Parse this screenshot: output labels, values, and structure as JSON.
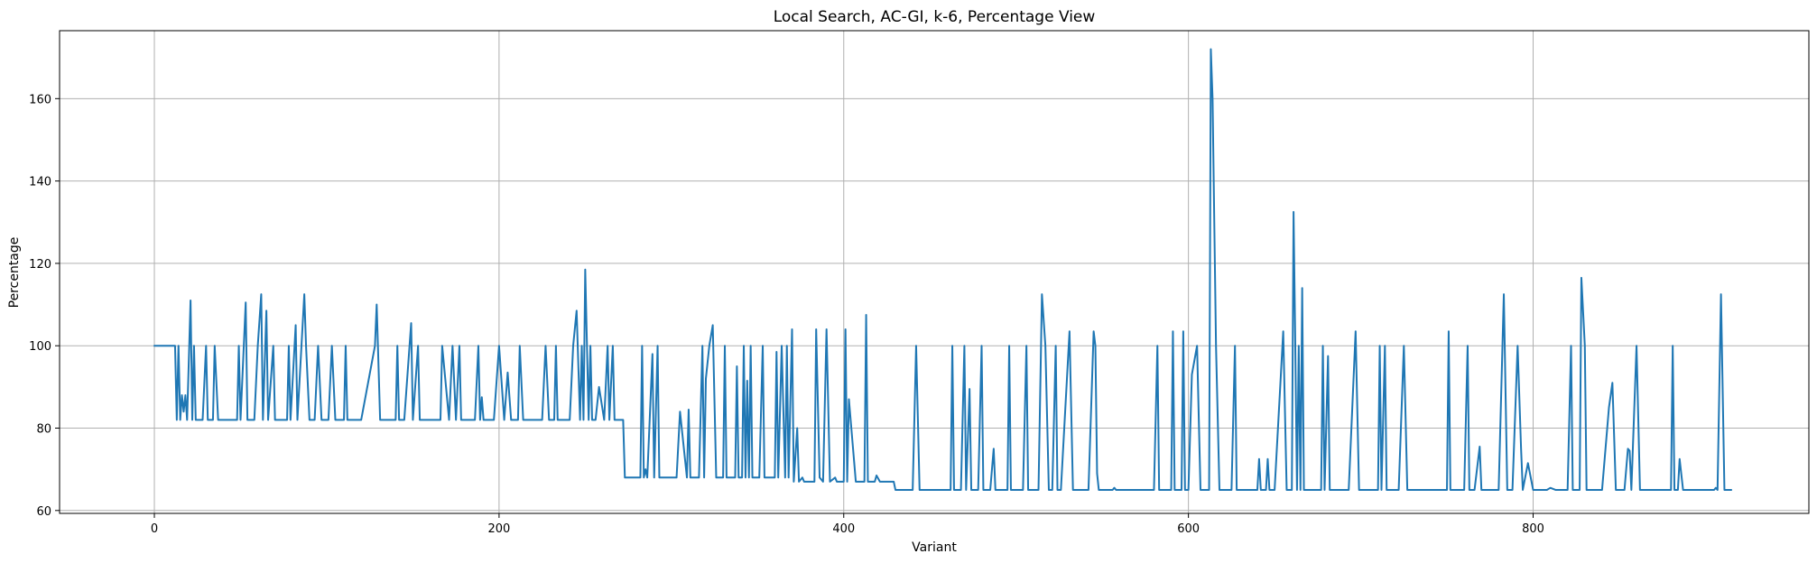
{
  "chart_data": {
    "type": "line",
    "title": "Local Search, AC-GI, k-6, Percentage View",
    "xlabel": "Variant",
    "ylabel": "Percentage",
    "xlim": [
      -55,
      960
    ],
    "ylim": [
      59.3,
      176.5
    ],
    "xticks": [
      0,
      200,
      400,
      600,
      800
    ],
    "yticks": [
      60,
      80,
      100,
      120,
      140,
      160
    ],
    "grid": true,
    "series_color": "#1f77b4",
    "series": [
      {
        "points": [
          [
            0,
            100
          ],
          [
            5,
            100
          ],
          [
            10,
            100
          ],
          [
            12,
            100
          ],
          [
            13,
            82
          ],
          [
            14,
            100
          ],
          [
            15,
            82
          ],
          [
            16,
            88
          ],
          [
            17,
            84
          ],
          [
            18,
            88
          ],
          [
            19,
            82
          ],
          [
            21,
            111
          ],
          [
            22,
            82
          ],
          [
            23,
            100
          ],
          [
            24,
            82
          ],
          [
            28,
            82
          ],
          [
            30,
            100
          ],
          [
            31,
            82
          ],
          [
            34,
            82
          ],
          [
            35,
            100
          ],
          [
            37,
            82
          ],
          [
            48,
            82
          ],
          [
            49,
            100
          ],
          [
            50,
            82
          ],
          [
            53,
            110.5
          ],
          [
            54,
            82
          ],
          [
            58,
            82
          ],
          [
            60,
            100
          ],
          [
            62,
            112.5
          ],
          [
            63,
            82
          ],
          [
            65,
            108.5
          ],
          [
            66,
            82
          ],
          [
            69,
            100
          ],
          [
            70,
            82
          ],
          [
            77,
            82
          ],
          [
            78,
            100
          ],
          [
            79,
            82
          ],
          [
            82,
            105
          ],
          [
            83,
            82
          ],
          [
            87,
            112.5
          ],
          [
            88,
            100
          ],
          [
            90,
            82
          ],
          [
            93,
            82
          ],
          [
            95,
            100
          ],
          [
            97,
            82
          ],
          [
            101,
            82
          ],
          [
            103,
            100
          ],
          [
            105,
            82
          ],
          [
            110,
            82
          ],
          [
            111,
            100
          ],
          [
            112,
            82
          ],
          [
            120,
            82
          ],
          [
            128,
            100
          ],
          [
            129,
            110
          ],
          [
            131,
            82
          ],
          [
            140,
            82
          ],
          [
            141,
            100
          ],
          [
            142,
            82
          ],
          [
            145,
            82
          ],
          [
            149,
            105.5
          ],
          [
            150,
            82
          ],
          [
            153,
            100
          ],
          [
            154,
            82
          ],
          [
            166,
            82
          ],
          [
            167,
            100
          ],
          [
            171,
            82
          ],
          [
            173,
            100
          ],
          [
            175,
            82
          ],
          [
            177,
            100
          ],
          [
            178,
            82
          ],
          [
            186,
            82
          ],
          [
            188,
            100
          ],
          [
            189,
            82
          ],
          [
            190,
            87.5
          ],
          [
            191,
            82
          ],
          [
            197,
            82
          ],
          [
            200,
            100
          ],
          [
            203,
            82
          ],
          [
            205,
            93.5
          ],
          [
            207,
            82
          ],
          [
            211,
            82
          ],
          [
            212,
            100
          ],
          [
            214,
            82
          ],
          [
            225,
            82
          ],
          [
            227,
            100
          ],
          [
            229,
            82
          ],
          [
            232,
            82
          ],
          [
            233,
            100
          ],
          [
            234,
            82
          ],
          [
            241,
            82
          ],
          [
            243,
            100
          ],
          [
            245,
            108.5
          ],
          [
            247,
            82
          ],
          [
            248,
            100
          ],
          [
            249,
            82
          ],
          [
            250,
            118.5
          ],
          [
            252,
            82
          ],
          [
            253,
            100
          ],
          [
            254,
            82
          ],
          [
            256,
            82
          ],
          [
            258,
            90
          ],
          [
            261,
            82
          ],
          [
            263,
            100
          ],
          [
            264,
            82
          ],
          [
            266,
            100
          ],
          [
            267,
            82
          ],
          [
            272,
            82
          ],
          [
            273,
            68
          ],
          [
            282,
            68
          ],
          [
            283,
            100
          ],
          [
            284,
            68
          ],
          [
            285,
            70
          ],
          [
            286,
            68
          ],
          [
            289,
            98
          ],
          [
            290,
            68
          ],
          [
            292,
            100
          ],
          [
            293,
            68
          ],
          [
            298,
            68
          ],
          [
            303,
            68
          ],
          [
            305,
            84
          ],
          [
            309,
            68
          ],
          [
            310,
            84.5
          ],
          [
            311,
            68
          ],
          [
            316,
            68
          ],
          [
            318,
            100
          ],
          [
            319,
            68
          ],
          [
            320,
            92
          ],
          [
            322,
            100
          ],
          [
            324,
            105
          ],
          [
            326,
            68
          ],
          [
            330,
            68
          ],
          [
            331,
            100
          ],
          [
            332,
            68
          ],
          [
            337,
            68
          ],
          [
            338,
            95
          ],
          [
            339,
            68
          ],
          [
            341,
            68
          ],
          [
            342,
            100
          ],
          [
            343,
            68
          ],
          [
            344,
            91.5
          ],
          [
            345,
            68
          ],
          [
            346,
            100
          ],
          [
            347,
            68
          ],
          [
            351,
            68
          ],
          [
            353,
            100
          ],
          [
            354,
            68
          ],
          [
            360,
            68
          ],
          [
            361,
            98.5
          ],
          [
            362,
            68
          ],
          [
            364,
            100
          ],
          [
            366,
            68
          ],
          [
            367,
            100
          ],
          [
            368,
            68
          ],
          [
            370,
            104
          ],
          [
            371,
            67
          ],
          [
            373,
            80
          ],
          [
            374,
            67
          ],
          [
            376,
            68
          ],
          [
            377,
            67
          ],
          [
            383,
            67
          ],
          [
            384,
            104
          ],
          [
            386,
            68
          ],
          [
            388,
            67
          ],
          [
            390,
            104
          ],
          [
            392,
            67
          ],
          [
            395,
            68
          ],
          [
            396,
            67
          ],
          [
            400,
            67
          ],
          [
            401,
            104
          ],
          [
            402,
            67
          ],
          [
            403,
            87
          ],
          [
            407,
            67
          ],
          [
            412,
            67
          ],
          [
            413,
            107.5
          ],
          [
            414,
            67
          ],
          [
            418,
            67
          ],
          [
            419,
            68.5
          ],
          [
            421,
            67
          ],
          [
            429,
            67
          ],
          [
            430,
            65
          ],
          [
            440,
            65
          ],
          [
            442,
            100
          ],
          [
            444,
            65
          ],
          [
            462,
            65
          ],
          [
            463,
            100
          ],
          [
            464,
            65
          ],
          [
            468,
            65
          ],
          [
            470,
            100
          ],
          [
            471,
            65
          ],
          [
            473,
            89.5
          ],
          [
            474,
            65
          ],
          [
            478,
            65
          ],
          [
            480,
            100
          ],
          [
            481,
            65
          ],
          [
            485,
            65
          ],
          [
            487,
            75
          ],
          [
            488,
            65
          ],
          [
            495,
            65
          ],
          [
            496,
            100
          ],
          [
            497,
            65
          ],
          [
            504,
            65
          ],
          [
            506,
            100
          ],
          [
            507,
            65
          ],
          [
            513,
            65
          ],
          [
            515,
            112.5
          ],
          [
            517,
            100
          ],
          [
            519,
            65
          ],
          [
            521,
            65
          ],
          [
            523,
            100
          ],
          [
            524,
            65
          ],
          [
            526,
            65
          ],
          [
            531,
            103.5
          ],
          [
            533,
            65
          ],
          [
            540,
            65
          ],
          [
            542,
            65
          ],
          [
            545,
            103.5
          ],
          [
            546,
            100
          ],
          [
            547,
            69
          ],
          [
            548,
            65
          ],
          [
            556,
            65
          ],
          [
            557,
            65.5
          ],
          [
            558,
            65
          ],
          [
            580,
            65
          ],
          [
            582,
            100
          ],
          [
            583,
            65
          ],
          [
            590,
            65
          ],
          [
            591,
            103.5
          ],
          [
            592,
            65
          ],
          [
            596,
            65
          ],
          [
            597,
            103.5
          ],
          [
            598,
            65
          ],
          [
            600,
            65
          ],
          [
            602,
            93
          ],
          [
            605,
            100
          ],
          [
            607,
            65
          ],
          [
            612,
            65
          ],
          [
            613,
            172
          ],
          [
            614,
            160
          ],
          [
            616,
            100
          ],
          [
            618,
            65
          ],
          [
            625,
            65
          ],
          [
            627,
            100
          ],
          [
            628,
            65
          ],
          [
            640,
            65
          ],
          [
            641,
            72.5
          ],
          [
            642,
            65
          ],
          [
            645,
            65
          ],
          [
            646,
            72.5
          ],
          [
            647,
            65
          ],
          [
            650,
            65
          ],
          [
            655,
            103.5
          ],
          [
            657,
            65
          ],
          [
            660,
            65
          ],
          [
            661,
            132.5
          ],
          [
            662,
            100
          ],
          [
            663,
            65
          ],
          [
            664,
            100
          ],
          [
            665,
            65
          ],
          [
            666,
            114
          ],
          [
            667,
            65
          ],
          [
            669,
            65
          ],
          [
            677,
            65
          ],
          [
            678,
            100
          ],
          [
            679,
            65
          ],
          [
            681,
            97.5
          ],
          [
            682,
            65
          ],
          [
            693,
            65
          ],
          [
            697,
            103.5
          ],
          [
            699,
            65
          ],
          [
            710,
            65
          ],
          [
            711,
            100
          ],
          [
            712,
            65
          ],
          [
            714,
            100
          ],
          [
            715,
            65
          ],
          [
            722,
            65
          ],
          [
            725,
            100
          ],
          [
            727,
            65
          ],
          [
            735,
            65
          ],
          [
            741,
            65
          ],
          [
            750,
            65
          ],
          [
            751,
            103.5
          ],
          [
            752,
            65
          ],
          [
            760,
            65
          ],
          [
            762,
            100
          ],
          [
            763,
            65
          ],
          [
            766,
            65
          ],
          [
            769,
            75.5
          ],
          [
            770,
            65
          ],
          [
            780,
            65
          ],
          [
            783,
            112.5
          ],
          [
            785,
            65
          ],
          [
            788,
            65
          ],
          [
            791,
            100
          ],
          [
            793,
            75
          ],
          [
            794,
            65
          ],
          [
            797,
            71.5
          ],
          [
            800,
            65
          ],
          [
            808,
            65
          ],
          [
            810,
            65.5
          ],
          [
            813,
            65
          ],
          [
            820,
            65
          ],
          [
            822,
            100
          ],
          [
            823,
            65
          ],
          [
            827,
            65
          ],
          [
            828,
            116.5
          ],
          [
            830,
            100
          ],
          [
            831,
            65
          ],
          [
            840,
            65
          ],
          [
            844,
            85
          ],
          [
            846,
            91
          ],
          [
            848,
            65
          ],
          [
            853,
            65
          ],
          [
            855,
            75
          ],
          [
            856,
            74.5
          ],
          [
            857,
            65
          ],
          [
            860,
            100
          ],
          [
            862,
            65
          ],
          [
            880,
            65
          ],
          [
            881,
            100
          ],
          [
            882,
            65
          ],
          [
            884,
            65
          ],
          [
            885,
            72.5
          ],
          [
            887,
            65
          ],
          [
            905,
            65
          ],
          [
            906,
            65.5
          ],
          [
            907,
            65
          ],
          [
            909,
            112.5
          ],
          [
            911,
            65
          ],
          [
            915,
            65
          ]
        ]
      }
    ]
  }
}
